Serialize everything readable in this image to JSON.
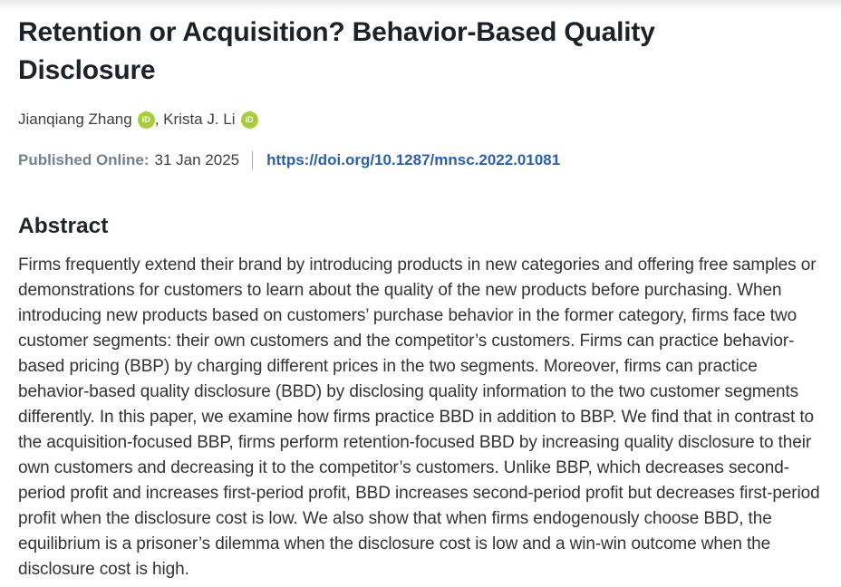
{
  "article": {
    "title": "Retention or Acquisition? Behavior-Based Quality Disclosure",
    "authors": [
      {
        "name": "Jianqiang Zhang"
      },
      {
        "name": "Krista J. Li"
      }
    ],
    "author_separator": ", ",
    "orcid_badge_label": "iD",
    "published": {
      "label": "Published Online:",
      "date": "31 Jan 2025",
      "doi": "https://doi.org/10.1287/mnsc.2022.01081"
    },
    "abstract": {
      "heading": "Abstract",
      "text": "Firms frequently extend their brand by introducing products in new categories and offering free samples or demonstrations for customers to learn about the quality of the new products before purchasing. When introducing new products based on customers’ purchase behavior in the former category, firms face two customer segments: their own customers and the competitor’s customers. Firms can practice behavior-based pricing (BBP) by charging different prices in the two segments. Moreover, firms can practice behavior-based quality disclosure (BBD) by disclosing quality information to the two customer segments differently. In this paper, we examine how firms practice BBD in addition to BBP. We find that in contrast to the acquisition-focused BBP, firms perform retention-focused BBD by increasing quality disclosure to their own customers and decreasing it to the competitor’s customers. Unlike BBP, which decreases second-period profit and increases first-period profit, BBD increases second-period profit but decreases first-period profit when the disclosure cost is low. We also show that when firms endogenously choose BBD, the equilibrium is a prisoner’s dilemma when the disclosure cost is low and a win-win outcome when the disclosure cost is high."
    },
    "colors": {
      "orcid_green": "#a6ce39",
      "link_blue": "#2b5fb0",
      "published_label": "#75818e",
      "body_text": "#333333",
      "heading_text": "#1d2129"
    }
  }
}
